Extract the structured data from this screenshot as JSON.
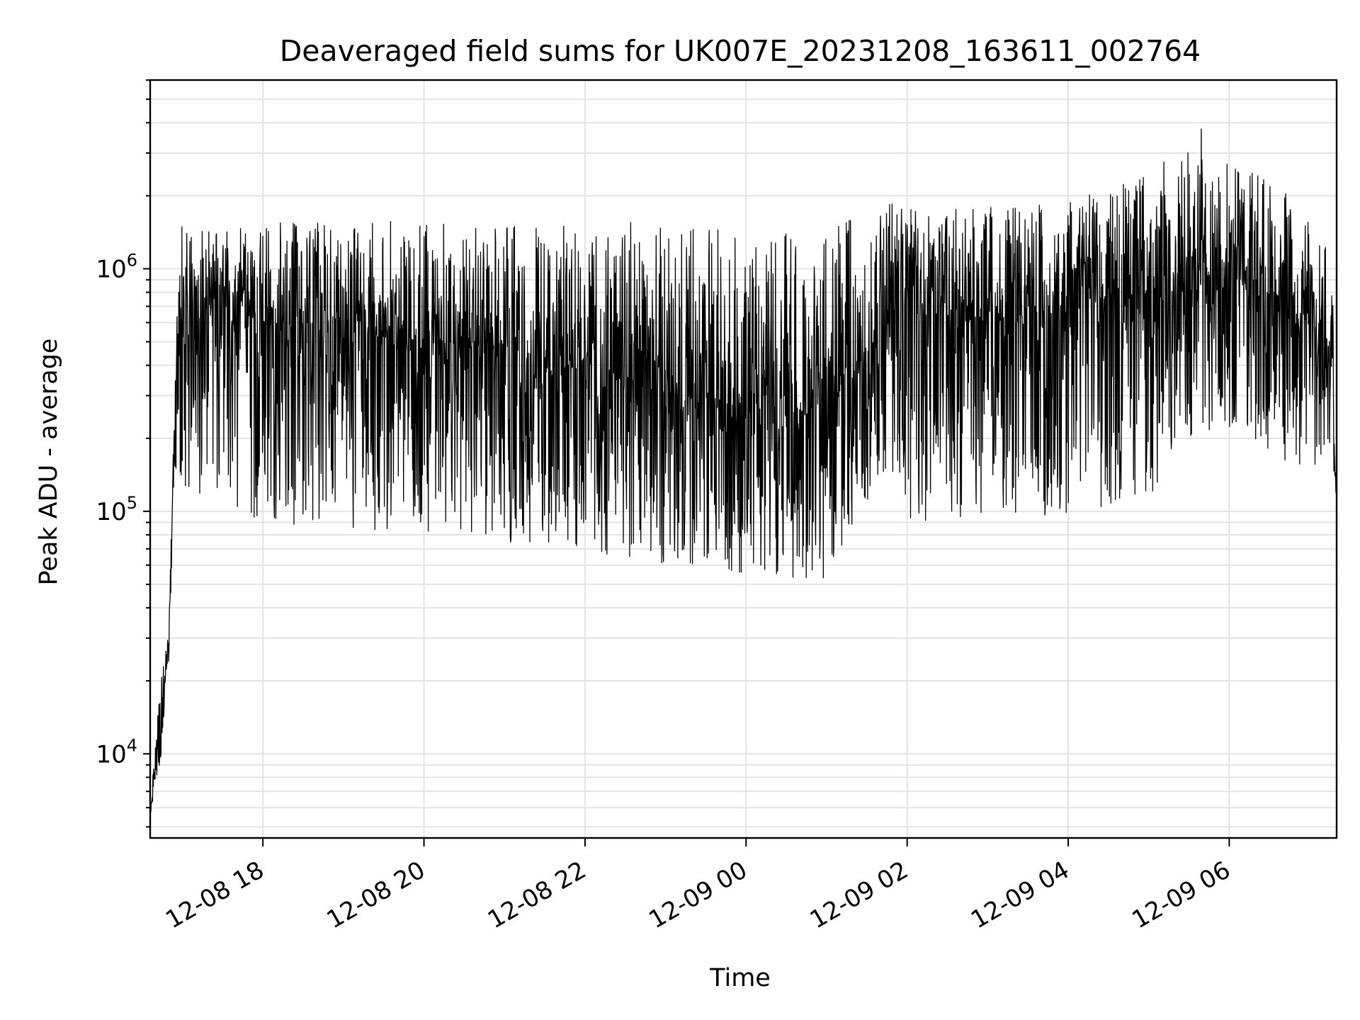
{
  "chart_data": {
    "type": "line",
    "title": "Deaveraged field sums for UK007E_20231208_163611_002764",
    "xlabel": "Time",
    "ylabel": "Peak ADU - average",
    "yscale": "log",
    "grid": true,
    "x_ticks": [
      "12-08 18",
      "12-08 20",
      "12-08 22",
      "12-09 00",
      "12-09 02",
      "12-09 04",
      "12-09 06"
    ],
    "y_ticks": [
      {
        "value": 10000,
        "base": "10",
        "exponent": "4"
      },
      {
        "value": 100000,
        "base": "10",
        "exponent": "5"
      },
      {
        "value": 1000000,
        "base": "10",
        "exponent": "6"
      }
    ],
    "xlim": [
      "2023-12-08 16:36",
      "2023-12-09 07:20"
    ],
    "ylim": [
      4500,
      6000000
    ],
    "line_color": "#000000",
    "series": [
      {
        "x": [
          "2023-12-08 16:36",
          "2023-12-08 16:40",
          "2023-12-08 16:45",
          "2023-12-08 16:50",
          "2023-12-08 16:55",
          "2023-12-08 17:00",
          "2023-12-08 17:30",
          "2023-12-08 18:00",
          "2023-12-08 19:00",
          "2023-12-08 20:00",
          "2023-12-08 21:00",
          "2023-12-08 22:00",
          "2023-12-08 23:00",
          "2023-12-09 00:00",
          "2023-12-09 01:00",
          "2023-12-09 01:45",
          "2023-12-09 02:00",
          "2023-12-09 03:00",
          "2023-12-09 04:00",
          "2023-12-09 05:00",
          "2023-12-09 05:40",
          "2023-12-09 06:00",
          "2023-12-09 06:50",
          "2023-12-09 07:15",
          "2023-12-09 07:20"
        ],
        "y": [
          5500,
          9000,
          15000,
          30000,
          300000,
          700000,
          800000,
          600000,
          550000,
          500000,
          480000,
          420000,
          300000,
          250000,
          260000,
          600000,
          750000,
          600000,
          700000,
          800000,
          1100000,
          950000,
          650000,
          500000,
          110000
        ],
        "y_low": [
          5500,
          7500,
          9000,
          25000,
          150000,
          120000,
          100000,
          90000,
          85000,
          80000,
          75000,
          70000,
          58000,
          55000,
          52000,
          150000,
          90000,
          90000,
          90000,
          110000,
          200000,
          220000,
          150000,
          150000,
          100000
        ],
        "y_high": [
          5500,
          12000,
          22000,
          35000,
          500000,
          1700000,
          1500000,
          1550000,
          1600000,
          1550000,
          1500000,
          1500000,
          1600000,
          1400000,
          1450000,
          1900000,
          1800000,
          1800000,
          1900000,
          2500000,
          4000000,
          2800000,
          2000000,
          1500000,
          600000
        ]
      }
    ]
  }
}
